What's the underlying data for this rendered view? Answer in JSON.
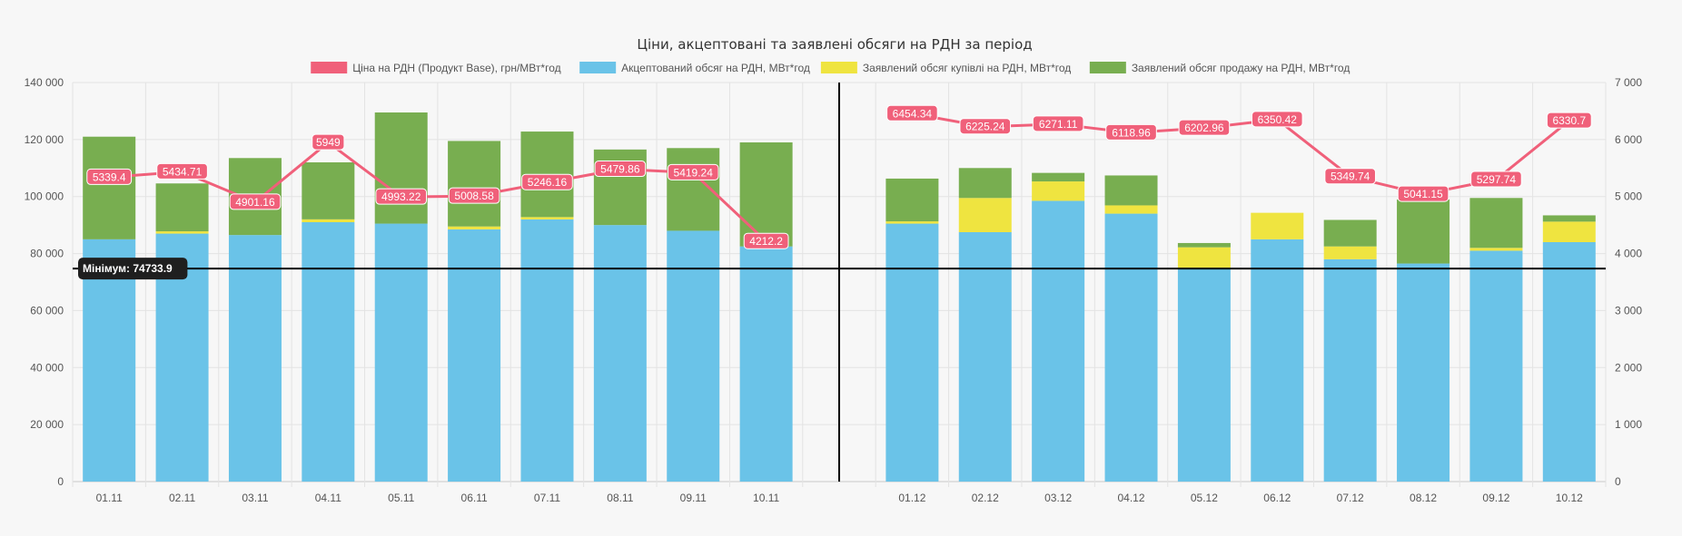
{
  "chart_data": {
    "type": "bar",
    "title": "Ціни, акцептовані та заявлені обсяги на РДН за період",
    "categories": [
      "01.11",
      "02.11",
      "03.11",
      "04.11",
      "05.11",
      "06.11",
      "07.11",
      "08.11",
      "09.11",
      "10.11",
      "",
      "01.12",
      "02.12",
      "03.12",
      "04.12",
      "05.12",
      "06.12",
      "07.12",
      "08.12",
      "09.12",
      "10.12"
    ],
    "y_left": {
      "ticks": [
        "0",
        "20 000",
        "40 000",
        "60 000",
        "80 000",
        "100 000",
        "120 000",
        "140 000"
      ],
      "min": 0,
      "max": 140000
    },
    "y_right": {
      "ticks": [
        "0",
        "1 000",
        "2 000",
        "3 000",
        "4 000",
        "5 000",
        "6 000",
        "7 000"
      ],
      "min": 0,
      "max": 7000
    },
    "series": [
      {
        "name": "Ціна на РДН (Продукт Base), грн/МВт*год",
        "kind": "line",
        "axis": "right",
        "color": "#f0607a",
        "values": [
          5339.4,
          5434.71,
          4901.16,
          5949,
          4993.22,
          5008.58,
          5246.16,
          5479.86,
          5419.24,
          4212.2,
          null,
          6454.34,
          6225.24,
          6271.11,
          6118.96,
          6202.96,
          6350.42,
          5349.74,
          5041.15,
          5297.74,
          6330.7
        ],
        "labels": [
          "5339.4",
          "5434.71",
          "4901.16",
          "5949",
          "4993.22",
          "5008.58",
          "5246.16",
          "5479.86",
          "5419.24",
          "4212.2",
          "",
          "6454.34",
          "6225.24",
          "6271.11",
          "6118.96",
          "6202.96",
          "6350.42",
          "5349.74",
          "5041.15",
          "5297.74",
          "6330.7"
        ]
      },
      {
        "name": "Акцептований обсяг на РДН, МВт*год",
        "kind": "bar",
        "axis": "left",
        "color": "#6ac3e8",
        "values": [
          85000,
          87000,
          86500,
          91000,
          90500,
          88500,
          92000,
          90000,
          88000,
          82500,
          null,
          90500,
          87500,
          98500,
          94000,
          75000,
          85000,
          78000,
          76500,
          81000,
          84000
        ]
      },
      {
        "name": "Заявлений обсяг купівлі на РДН, МВт*год",
        "kind": "bar",
        "axis": "left",
        "color": "#efe440",
        "values": [
          0,
          800,
          0,
          1000,
          0,
          1000,
          800,
          0,
          0,
          0,
          null,
          800,
          12000,
          6800,
          2900,
          7200,
          9300,
          4500,
          0,
          1000,
          7200
        ]
      },
      {
        "name": "Заявлений обсяг продажу на РДН, МВт*год",
        "kind": "bar",
        "axis": "left",
        "color": "#78ae50",
        "values": [
          36000,
          16800,
          27000,
          20000,
          39000,
          30000,
          30000,
          26500,
          29000,
          36500,
          null,
          15000,
          10500,
          3000,
          10500,
          1500,
          0,
          9300,
          22500,
          17500,
          2200
        ]
      }
    ],
    "annotations": [
      {
        "label": "Мінімум: 74733.9",
        "value": 74733.9,
        "axis": "left"
      }
    ],
    "divider_after_category": 10,
    "legend_position": "top",
    "grid": true
  }
}
